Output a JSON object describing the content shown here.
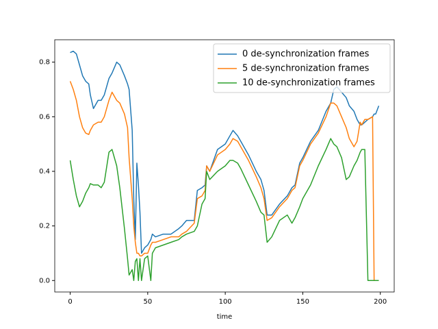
{
  "chart_data": {
    "type": "line",
    "xlabel": "time",
    "x": [
      0,
      2,
      4,
      6,
      8,
      10,
      12,
      13,
      15,
      18,
      20,
      22,
      25,
      27,
      30,
      32,
      35,
      37,
      38,
      40,
      41,
      42,
      43,
      44,
      45,
      46,
      48,
      50,
      52,
      53,
      55,
      60,
      65,
      70,
      72,
      75,
      80,
      82,
      85,
      87,
      88,
      90,
      95,
      100,
      103,
      105,
      108,
      110,
      115,
      120,
      123,
      125,
      127,
      130,
      135,
      140,
      143,
      145,
      148,
      150,
      155,
      160,
      165,
      168,
      170,
      172,
      175,
      178,
      180,
      183,
      185,
      187,
      188,
      190,
      192,
      195,
      196,
      197,
      199
    ],
    "series": [
      {
        "name": "0 de-synchronization frames",
        "color": "#1f77b4",
        "values": [
          0.835,
          0.84,
          0.83,
          0.79,
          0.75,
          0.73,
          0.72,
          0.68,
          0.63,
          0.66,
          0.66,
          0.68,
          0.74,
          0.76,
          0.8,
          0.79,
          0.75,
          0.72,
          0.7,
          0.55,
          0.3,
          0.15,
          0.43,
          0.35,
          0.25,
          0.1,
          0.12,
          0.13,
          0.15,
          0.17,
          0.16,
          0.17,
          0.17,
          0.19,
          0.2,
          0.22,
          0.22,
          0.33,
          0.34,
          0.35,
          0.42,
          0.4,
          0.48,
          0.5,
          0.53,
          0.55,
          0.53,
          0.51,
          0.46,
          0.4,
          0.37,
          0.33,
          0.24,
          0.24,
          0.28,
          0.31,
          0.34,
          0.35,
          0.43,
          0.45,
          0.51,
          0.55,
          0.62,
          0.65,
          0.7,
          0.71,
          0.69,
          0.67,
          0.64,
          0.62,
          0.59,
          0.57,
          0.57,
          0.58,
          0.59,
          0.6,
          0.61,
          0.61,
          0.64
        ]
      },
      {
        "name": "5 de-synchronization frames",
        "color": "#ff7f0e",
        "values": [
          0.73,
          0.7,
          0.66,
          0.6,
          0.56,
          0.54,
          0.535,
          0.55,
          0.57,
          0.58,
          0.58,
          0.6,
          0.66,
          0.69,
          0.66,
          0.65,
          0.61,
          0.56,
          0.45,
          0.3,
          0.2,
          0.14,
          0.1,
          0.1,
          0.09,
          0.09,
          0.1,
          0.1,
          0.13,
          0.14,
          0.14,
          0.15,
          0.16,
          0.16,
          0.17,
          0.18,
          0.21,
          0.3,
          0.31,
          0.33,
          0.42,
          0.4,
          0.46,
          0.48,
          0.5,
          0.52,
          0.51,
          0.49,
          0.44,
          0.38,
          0.34,
          0.3,
          0.22,
          0.23,
          0.27,
          0.3,
          0.33,
          0.34,
          0.42,
          0.44,
          0.5,
          0.54,
          0.6,
          0.65,
          0.65,
          0.64,
          0.6,
          0.56,
          0.52,
          0.49,
          0.51,
          0.58,
          0.57,
          0.59,
          0.59,
          0.6,
          0,
          0,
          0
        ]
      },
      {
        "name": "10 de-synchronization frames",
        "color": "#2ca02c",
        "values": [
          0.44,
          0.37,
          0.31,
          0.27,
          0.29,
          0.32,
          0.34,
          0.355,
          0.35,
          0.35,
          0.34,
          0.36,
          0.47,
          0.48,
          0.42,
          0.34,
          0.19,
          0.08,
          0.02,
          0.04,
          0,
          0.07,
          0.08,
          0,
          0.08,
          0,
          0.08,
          0.09,
          0,
          0.1,
          0.12,
          0.13,
          0.14,
          0.15,
          0.16,
          0.17,
          0.18,
          0.2,
          0.28,
          0.3,
          0.4,
          0.37,
          0.4,
          0.42,
          0.44,
          0.44,
          0.43,
          0.41,
          0.35,
          0.29,
          0.25,
          0.24,
          0.14,
          0.16,
          0.22,
          0.24,
          0.21,
          0.23,
          0.27,
          0.3,
          0.35,
          0.42,
          0.48,
          0.52,
          0.5,
          0.49,
          0.45,
          0.37,
          0.38,
          0.42,
          0.44,
          0.47,
          0.48,
          0.48,
          0,
          0,
          0,
          0,
          0
        ]
      }
    ],
    "xlim": [
      -9.95,
      208.95
    ],
    "ylim": [
      -0.042,
      0.882
    ],
    "xticks": [
      0,
      50,
      100,
      150,
      200
    ],
    "yticks": [
      {
        "value": 0,
        "label": "0.0"
      },
      0.2,
      0.4,
      0.6,
      0.8
    ],
    "legend": "upper right"
  }
}
